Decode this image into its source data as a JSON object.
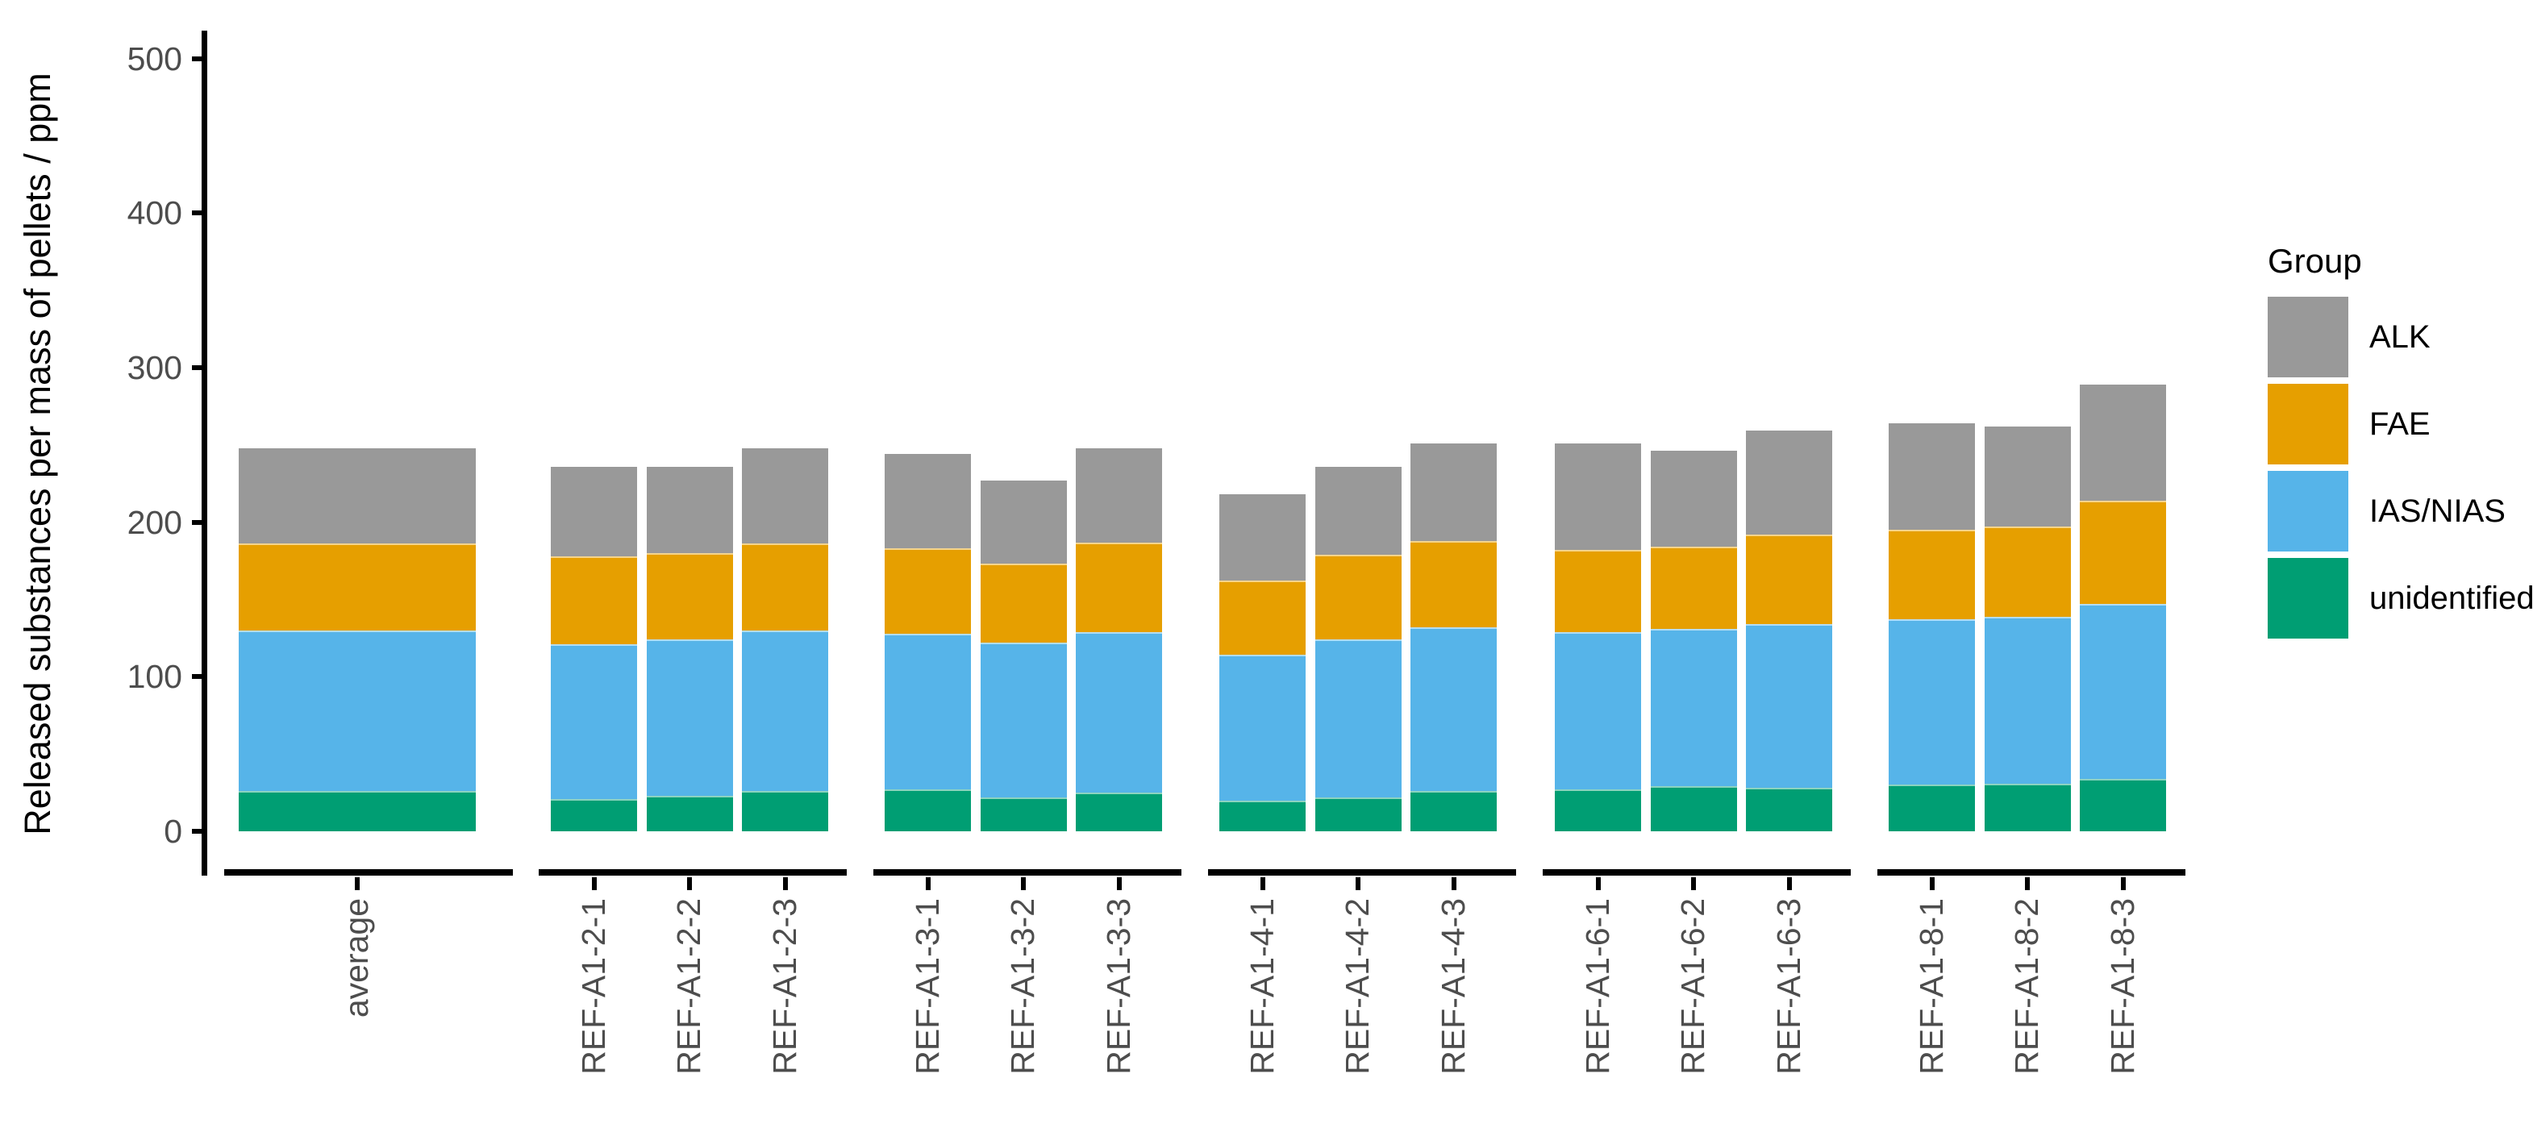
{
  "figure": {
    "y_axis_title": "Released substances per mass of pellets / ppm",
    "legend": {
      "title": "Group",
      "items": [
        {
          "label": "ALK",
          "color": "#999999"
        },
        {
          "label": "FAE",
          "color": "#E69F00"
        },
        {
          "label": "IAS/NIAS",
          "color": "#56B4E9"
        },
        {
          "label": "unidentified",
          "color": "#009E73"
        }
      ]
    }
  },
  "chart_data": {
    "type": "bar",
    "stacked": true,
    "title": "",
    "xlabel": "",
    "ylabel": "Released substances per mass of pellets / ppm",
    "ylim": [
      0,
      500
    ],
    "yticks": [
      0,
      100,
      200,
      300,
      400,
      500
    ],
    "grid": false,
    "legend_position": "right",
    "legend_title": "Group",
    "categories": [
      "average",
      "REF-A1-2-1",
      "REF-A1-2-2",
      "REF-A1-2-3",
      "REF-A1-3-1",
      "REF-A1-3-2",
      "REF-A1-3-3",
      "REF-A1-4-1",
      "REF-A1-4-2",
      "REF-A1-4-3",
      "REF-A1-6-1",
      "REF-A1-6-2",
      "REF-A1-6-3",
      "REF-A1-8-1",
      "REF-A1-8-2",
      "REF-A1-8-3"
    ],
    "x_groups": [
      [
        "average"
      ],
      [
        "REF-A1-2-1",
        "REF-A1-2-2",
        "REF-A1-2-3"
      ],
      [
        "REF-A1-3-1",
        "REF-A1-3-2",
        "REF-A1-3-3"
      ],
      [
        "REF-A1-4-1",
        "REF-A1-4-2",
        "REF-A1-4-3"
      ],
      [
        "REF-A1-6-1",
        "REF-A1-6-2",
        "REF-A1-6-3"
      ],
      [
        "REF-A1-8-1",
        "REF-A1-8-2",
        "REF-A1-8-3"
      ]
    ],
    "stack_order_bottom_to_top": [
      "unidentified",
      "IAS/NIAS",
      "FAE",
      "ALK"
    ],
    "series": [
      {
        "name": "ALK",
        "color": "#999999",
        "values": [
          62,
          58,
          56,
          62,
          61,
          54,
          61,
          56,
          57,
          63,
          69,
          62,
          67,
          69,
          65,
          75
        ]
      },
      {
        "name": "FAE",
        "color": "#E69F00",
        "values": [
          56,
          57,
          56,
          56,
          55,
          51,
          58,
          48,
          55,
          56,
          53,
          53,
          58,
          58,
          58,
          67
        ]
      },
      {
        "name": "IAS/NIAS",
        "color": "#56B4E9",
        "values": [
          104,
          100,
          101,
          104,
          101,
          100,
          104,
          94,
          102,
          106,
          102,
          102,
          106,
          107,
          108,
          113
        ]
      },
      {
        "name": "unidentified",
        "color": "#009E73",
        "values": [
          26,
          21,
          23,
          26,
          27,
          22,
          25,
          20,
          22,
          26,
          27,
          29,
          28,
          30,
          31,
          34
        ]
      }
    ],
    "totals": [
      248,
      236,
      236,
      248,
      244,
      227,
      248,
      218,
      236,
      251,
      251,
      246,
      259,
      264,
      262,
      289
    ]
  }
}
